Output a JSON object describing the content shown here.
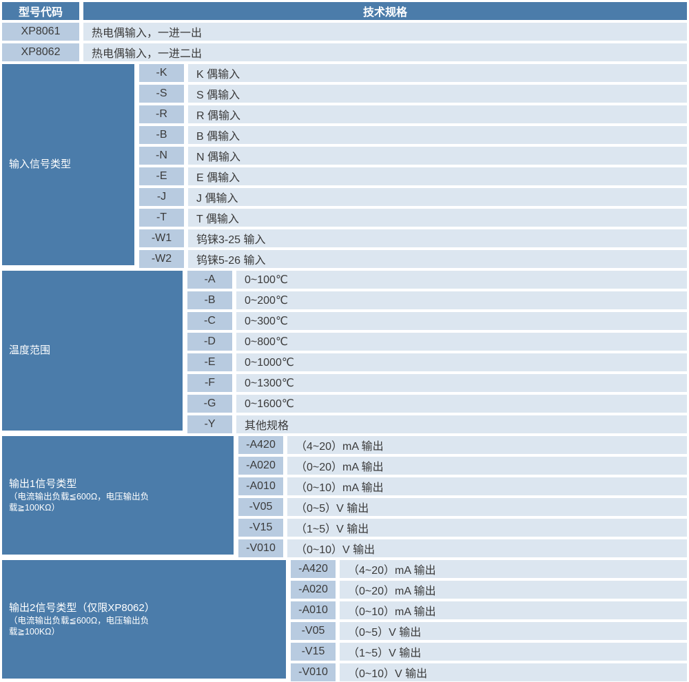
{
  "header": {
    "model_col": "型号代码",
    "spec_col": "技术规格"
  },
  "models": [
    {
      "code": "XP8061",
      "desc": "热电偶输入，一进一出"
    },
    {
      "code": "XP8062",
      "desc": "热电偶输入，一进二出"
    }
  ],
  "sections": [
    {
      "label": "输入信号类型",
      "rows": [
        {
          "code": "-K",
          "desc": "K 偶输入"
        },
        {
          "code": "-S",
          "desc": "S 偶输入"
        },
        {
          "code": "-R",
          "desc": "R 偶输入"
        },
        {
          "code": "-B",
          "desc": "B 偶输入"
        },
        {
          "code": "-N",
          "desc": "N 偶输入"
        },
        {
          "code": "-E",
          "desc": "E 偶输入"
        },
        {
          "code": "-J",
          "desc": "J 偶输入"
        },
        {
          "code": "-T",
          "desc": "T 偶输入"
        },
        {
          "code": "-W1",
          "desc": "钨铼3-25 输入"
        },
        {
          "code": "-W2",
          "desc": "钨铼5-26 输入"
        }
      ]
    },
    {
      "label": "温度范围",
      "rows": [
        {
          "code": "-A",
          "desc": "0~100℃"
        },
        {
          "code": "-B",
          "desc": "0~200℃"
        },
        {
          "code": "-C",
          "desc": "0~300℃"
        },
        {
          "code": "-D",
          "desc": "0~800℃"
        },
        {
          "code": "-E",
          "desc": "0~1000℃"
        },
        {
          "code": "-F",
          "desc": "0~1300℃"
        },
        {
          "code": "-G",
          "desc": "0~1600℃"
        },
        {
          "code": "-Y",
          "desc": "其他规格"
        }
      ]
    },
    {
      "label": "输出1信号类型",
      "sublabel": "（电流输出负载≦600Ω，电压输出负\n载≧100KΩ）",
      "rows": [
        {
          "code": "-A420",
          "desc": "（4~20）mA 输出"
        },
        {
          "code": "-A020",
          "desc": "（0~20）mA 输出"
        },
        {
          "code": "-A010",
          "desc": "（0~10）mA 输出"
        },
        {
          "code": "-V05",
          "desc": "（0~5）V 输出"
        },
        {
          "code": "-V15",
          "desc": "（1~5）V 输出"
        },
        {
          "code": "-V010",
          "desc": "（0~10）V 输出"
        }
      ]
    },
    {
      "label": "输出2信号类型（仅限XP8062）",
      "sublabel": "（电流输出负载≦600Ω，电压输出负\n载≧100KΩ）",
      "rows": [
        {
          "code": "-A420",
          "desc": "（4~20）mA 输出"
        },
        {
          "code": "-A020",
          "desc": "（0~20）mA 输出"
        },
        {
          "code": "-A010",
          "desc": "（0~10）mA 输出"
        },
        {
          "code": "-V05",
          "desc": "（0~5）V 输出"
        },
        {
          "code": "-V15",
          "desc": "（1~5）V 输出"
        },
        {
          "code": "-V010",
          "desc": "（0~10）V 输出"
        }
      ]
    }
  ],
  "colors": {
    "section_header_bg": "#4b7caa",
    "code_cell_bg": "#b8cbe0",
    "desc_cell_bg": "#dce6f0",
    "header_text": "#ffffff",
    "body_text": "#3a3a3a",
    "gap": "#ffffff"
  }
}
